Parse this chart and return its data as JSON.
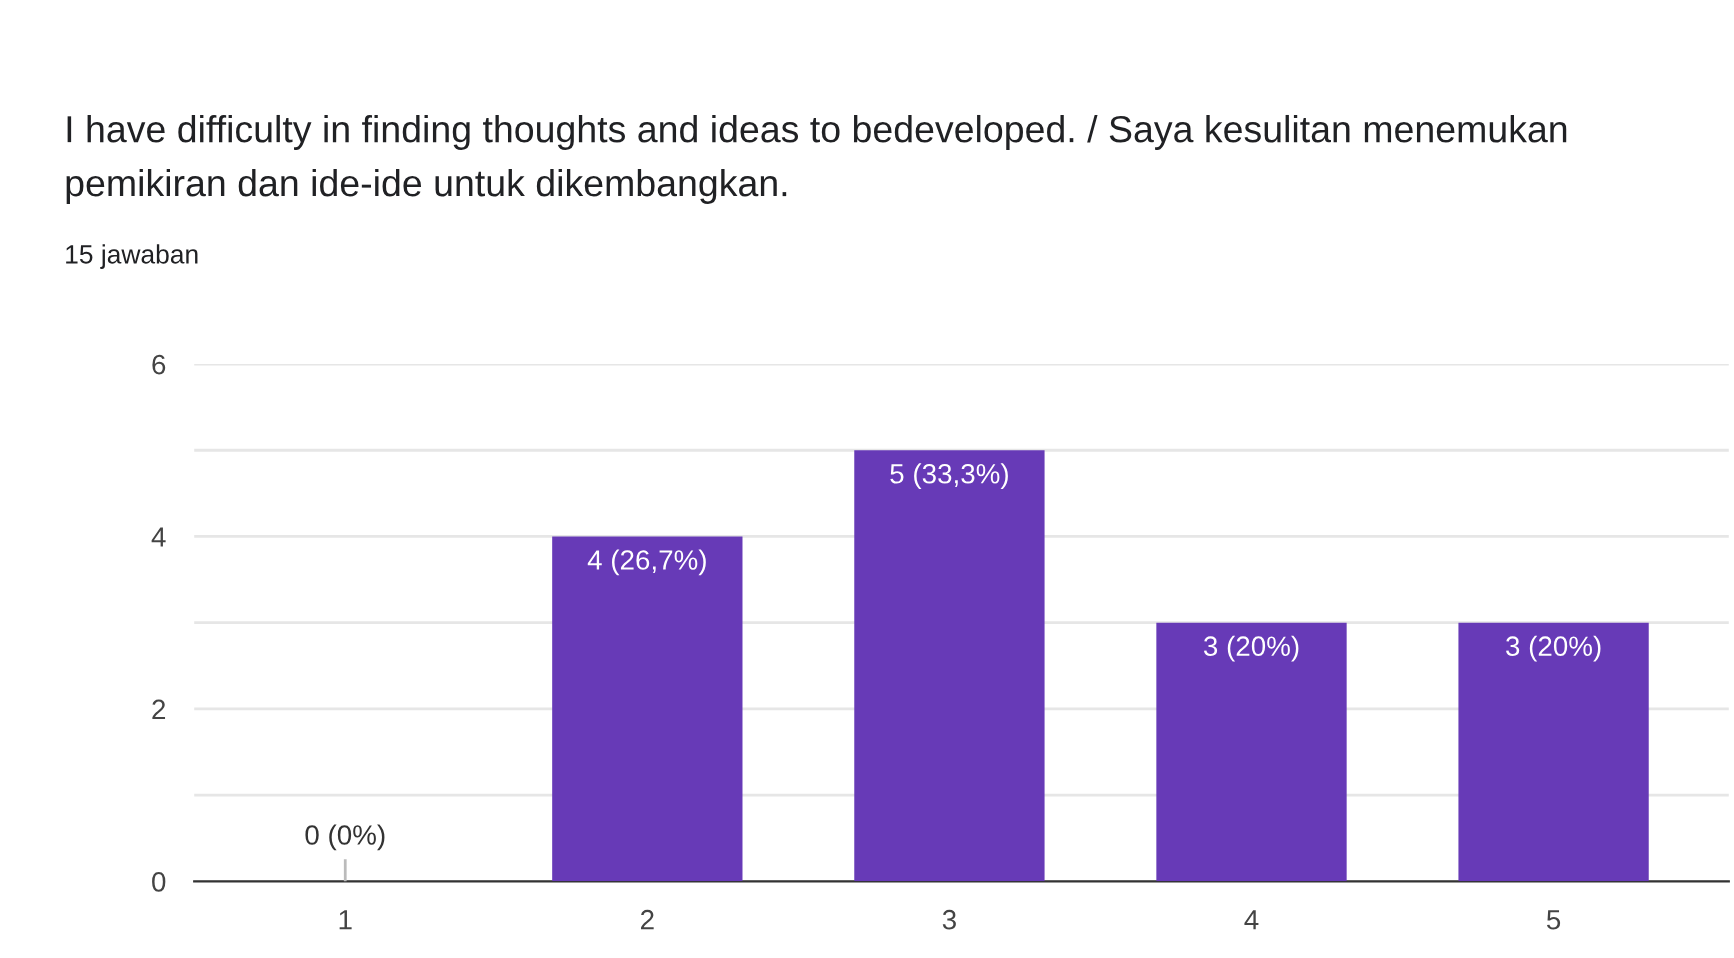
{
  "chart_data": {
    "type": "bar",
    "title": "I have difficulty in finding thoughts and ideas to bedeveloped. / Saya kesulitan menemukan\npemikiran dan ide-ide untuk dikembangkan.",
    "subtitle": "15 jawaban",
    "categories": [
      "1",
      "2",
      "3",
      "4",
      "5"
    ],
    "values": [
      0,
      4,
      5,
      3,
      3
    ],
    "value_labels": [
      "0 (0%)",
      "4 (26,7%)",
      "5 (33,3%)",
      "3 (20%)",
      "3 (20%)"
    ],
    "color": "#673ab7",
    "ylim": [
      0,
      6
    ],
    "yticks": [
      0,
      {
        "value": 1,
        "label": null
      },
      2,
      {
        "value": 3,
        "label": null
      },
      4,
      {
        "value": 5,
        "label": null
      },
      6
    ],
    "grid": "y",
    "legend": false
  }
}
